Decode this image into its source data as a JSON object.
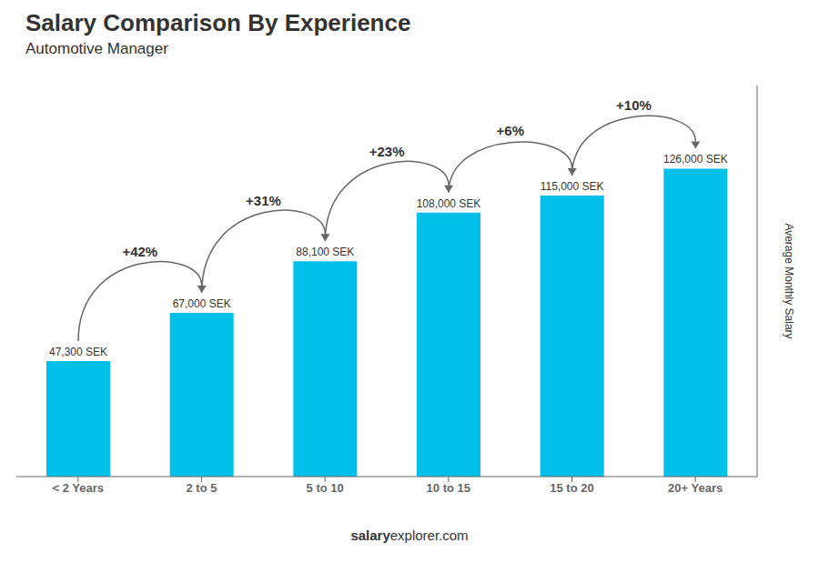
{
  "chart_data": {
    "type": "bar",
    "title": "Salary Comparison By Experience",
    "subtitle": "Automotive Manager",
    "categories": [
      "< 2 Years",
      "2 to 5",
      "5 to 10",
      "10 to 15",
      "15 to 20",
      "20+ Years"
    ],
    "values": [
      47300,
      67000,
      88100,
      108000,
      115000,
      126000
    ],
    "value_labels": [
      "47,300 SEK",
      "67,000 SEK",
      "88,100 SEK",
      "108,000 SEK",
      "115,000 SEK",
      "126,000 SEK"
    ],
    "data_labels": true,
    "color": "#00bfe8",
    "ylabel": "Average Monthly Salary",
    "ylim": [
      0,
      160000
    ],
    "tick_labels": "x",
    "grid": false,
    "annotations": [
      "+42%",
      "+31%",
      "+23%",
      "+6%",
      "+10%",
      "salary",
      "explorer.com"
    ]
  }
}
